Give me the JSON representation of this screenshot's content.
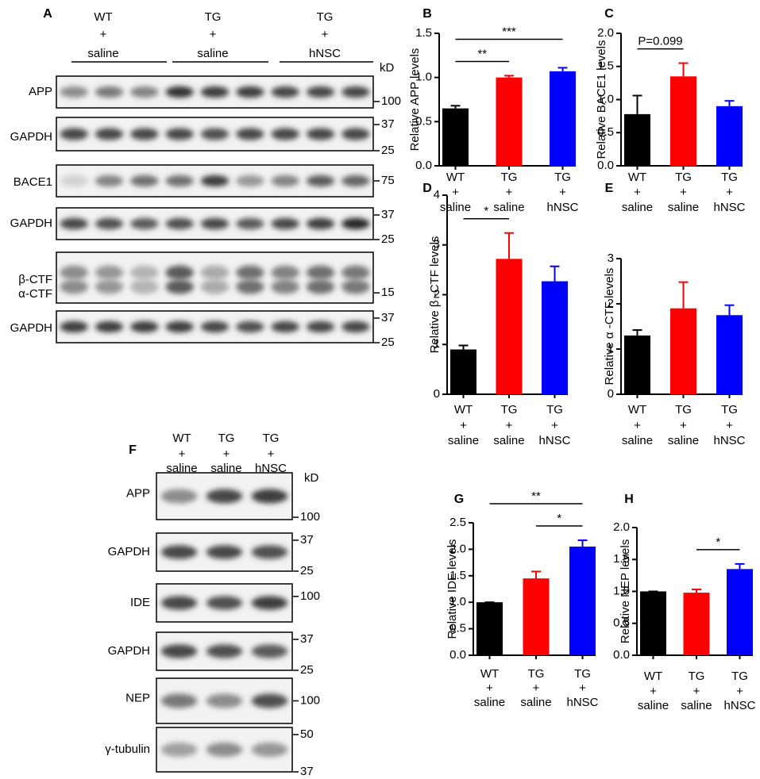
{
  "figure": {
    "blot_a": {
      "panel": "A",
      "unit": "kD",
      "groups": [
        [
          "WT",
          "+",
          "saline"
        ],
        [
          "TG",
          "+",
          "saline"
        ],
        [
          "TG",
          "+",
          "hNSC"
        ]
      ],
      "rows": [
        {
          "labels": [
            "APP"
          ],
          "markers": [
            "100"
          ]
        },
        {
          "labels": [
            "GAPDH"
          ],
          "markers": [
            "37",
            "25"
          ]
        },
        {
          "labels": [
            "BACE1"
          ],
          "markers": [
            "75"
          ]
        },
        {
          "labels": [
            "GAPDH"
          ],
          "markers": [
            "37",
            "25"
          ]
        },
        {
          "labels": [
            "β-CTF",
            "α-CTF"
          ],
          "markers": [
            "15"
          ]
        },
        {
          "labels": [
            "GAPDH"
          ],
          "markers": [
            "37",
            "25"
          ]
        }
      ]
    },
    "blot_f": {
      "panel": "F",
      "unit": "kD",
      "groups": [
        [
          "WT",
          "+",
          "saline"
        ],
        [
          "TG",
          "+",
          "saline"
        ],
        [
          "TG",
          "+",
          "hNSC"
        ]
      ],
      "rows": [
        {
          "labels": [
            "APP"
          ],
          "markers": [
            "100"
          ]
        },
        {
          "labels": [
            "GAPDH"
          ],
          "markers": [
            "37",
            "25"
          ]
        },
        {
          "labels": [
            "IDE"
          ],
          "markers": [
            "100"
          ]
        },
        {
          "labels": [
            "GAPDH"
          ],
          "markers": [
            "37",
            "25"
          ]
        },
        {
          "labels": [
            "NEP"
          ],
          "markers": [
            "100"
          ]
        },
        {
          "labels": [
            "γ-tubulin"
          ],
          "markers": [
            "50",
            "37"
          ]
        }
      ]
    }
  },
  "chart_data": [
    {
      "type": "bar",
      "panel": "B",
      "y_label": "Relative APP levels",
      "categories": [
        [
          "WT",
          "+",
          "saline"
        ],
        [
          "TG",
          "+",
          "saline"
        ],
        [
          "TG",
          "+",
          "hNSC"
        ]
      ],
      "values": [
        0.65,
        1.0,
        1.07
      ],
      "errors": [
        0.03,
        0.02,
        0.04
      ],
      "colors": [
        "#000000",
        "#ff0000",
        "#0000ff"
      ],
      "ylim": [
        0,
        1.5
      ],
      "yticks": [
        {
          "value": 0,
          "label": "0.0"
        },
        {
          "value": 0.5,
          "label": "0.5"
        },
        {
          "value": 1,
          "label": "1.0"
        },
        {
          "value": 1.5,
          "label": "1.5"
        }
      ],
      "annotations": [
        {
          "text": "**",
          "from": 0,
          "to": 1
        },
        {
          "text": "***",
          "from": 0,
          "to": 2
        }
      ]
    },
    {
      "type": "bar",
      "panel": "C",
      "y_label": "Relative BACE1 levels",
      "categories": [
        [
          "WT",
          "+",
          "saline"
        ],
        [
          "TG",
          "+",
          "saline"
        ],
        [
          "TG",
          "+",
          "hNSC"
        ]
      ],
      "values": [
        0.78,
        1.35,
        0.9
      ],
      "errors": [
        0.28,
        0.2,
        0.08
      ],
      "colors": [
        "#000000",
        "#ff0000",
        "#0000ff"
      ],
      "ylim": [
        0,
        2
      ],
      "yticks": [
        {
          "value": 0,
          "label": "0.0"
        },
        {
          "value": 0.5,
          "label": "0.5"
        },
        {
          "value": 1,
          "label": "1.0"
        },
        {
          "value": 1.5,
          "label": "1.5"
        },
        {
          "value": 2,
          "label": "2.0"
        }
      ],
      "annotations": [
        {
          "text": "P=0.099",
          "from": 0,
          "to": 1
        }
      ]
    },
    {
      "type": "bar",
      "panel": "D",
      "y_label": "Relative β -CTF levels",
      "categories": [
        [
          "WT",
          "+",
          "saline"
        ],
        [
          "TG",
          "+",
          "saline"
        ],
        [
          "TG",
          "+",
          "hNSC"
        ]
      ],
      "values": [
        0.9,
        2.72,
        2.27
      ],
      "errors": [
        0.08,
        0.52,
        0.3
      ],
      "colors": [
        "#000000",
        "#ff0000",
        "#0000ff"
      ],
      "ylim": [
        0,
        4
      ],
      "yticks": [
        0,
        1,
        2,
        3,
        4
      ],
      "annotations": [
        {
          "text": "*",
          "from": 0,
          "to": 1
        }
      ]
    },
    {
      "type": "bar",
      "panel": "E",
      "y_label": "Relative α -CTF levels",
      "categories": [
        [
          "WT",
          "+",
          "saline"
        ],
        [
          "TG",
          "+",
          "saline"
        ],
        [
          "TG",
          "+",
          "hNSC"
        ]
      ],
      "values": [
        1.3,
        1.9,
        1.75
      ],
      "errors": [
        0.12,
        0.58,
        0.22
      ],
      "colors": [
        "#000000",
        "#ff0000",
        "#0000ff"
      ],
      "ylim": [
        0,
        3
      ],
      "yticks": [
        0,
        1,
        2,
        3
      ],
      "annotations": []
    },
    {
      "type": "bar",
      "panel": "G",
      "y_label": "Relative IDE levels",
      "categories": [
        [
          "WT",
          "+",
          "saline"
        ],
        [
          "TG",
          "+",
          "saline"
        ],
        [
          "TG",
          "+",
          "hNSC"
        ]
      ],
      "values": [
        1.0,
        1.45,
        2.05
      ],
      "errors": [
        0,
        0.13,
        0.12
      ],
      "colors": [
        "#000000",
        "#ff0000",
        "#0000ff"
      ],
      "ylim": [
        0,
        2.5
      ],
      "yticks": [
        {
          "value": 0,
          "label": "0.0"
        },
        {
          "value": 0.5,
          "label": "0.5"
        },
        {
          "value": 1,
          "label": "1.0"
        },
        {
          "value": 1.5,
          "label": "1.5"
        },
        {
          "value": 2,
          "label": "2.0"
        },
        {
          "value": 2.5,
          "label": "2.5"
        }
      ],
      "annotations": [
        {
          "text": "**",
          "from": 0,
          "to": 2
        },
        {
          "text": "*",
          "from": 1,
          "to": 2
        }
      ]
    },
    {
      "type": "bar",
      "panel": "H",
      "y_label": "Relative NEP levels",
      "categories": [
        [
          "WT",
          "+",
          "saline"
        ],
        [
          "TG",
          "+",
          "saline"
        ],
        [
          "TG",
          "+",
          "hNSC"
        ]
      ],
      "values": [
        1.0,
        0.98,
        1.35
      ],
      "errors": [
        0,
        0.05,
        0.08
      ],
      "colors": [
        "#000000",
        "#ff0000",
        "#0000ff"
      ],
      "ylim": [
        0,
        2
      ],
      "yticks": [
        {
          "value": 0,
          "label": "0.0"
        },
        {
          "value": 0.5,
          "label": "0.5"
        },
        {
          "value": 1,
          "label": "1.0"
        },
        {
          "value": 1.5,
          "label": "1.5"
        },
        {
          "value": 2,
          "label": "2.0"
        }
      ],
      "annotations": [
        {
          "text": "*",
          "from": 1,
          "to": 2
        }
      ]
    }
  ]
}
